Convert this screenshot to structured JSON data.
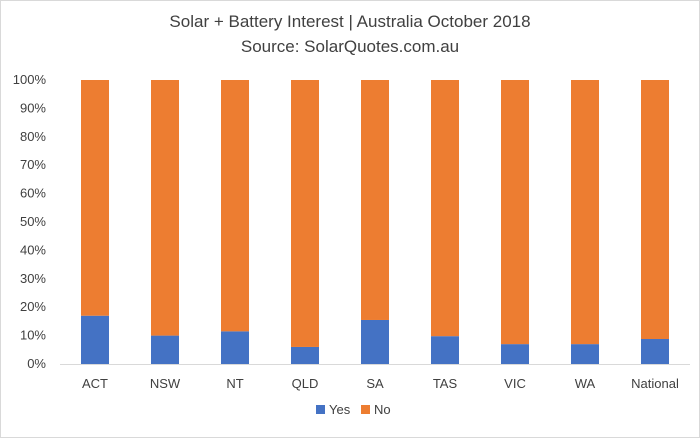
{
  "chart_data": {
    "type": "bar",
    "stacked": true,
    "percent_stacked": true,
    "title": "Solar + Battery Interest | Australia October 2018",
    "subtitle": "Source: SolarQuotes.com.au",
    "categories": [
      "ACT",
      "NSW",
      "NT",
      "QLD",
      "SA",
      "TAS",
      "VIC",
      "WA",
      "National"
    ],
    "series": [
      {
        "name": "Yes",
        "color": "#4472C4",
        "values": [
          17,
          10,
          11.5,
          6,
          15.5,
          9.8,
          7,
          7,
          8.8
        ]
      },
      {
        "name": "No",
        "color": "#ED7D31",
        "values": [
          83,
          90,
          88.5,
          94,
          84.5,
          90.2,
          93,
          93,
          91.2
        ]
      }
    ],
    "y_ticks": [
      "0%",
      "10%",
      "20%",
      "30%",
      "40%",
      "50%",
      "60%",
      "70%",
      "80%",
      "90%",
      "100%"
    ],
    "ylim": [
      0,
      100
    ],
    "grid": false,
    "legend": "bottom"
  }
}
